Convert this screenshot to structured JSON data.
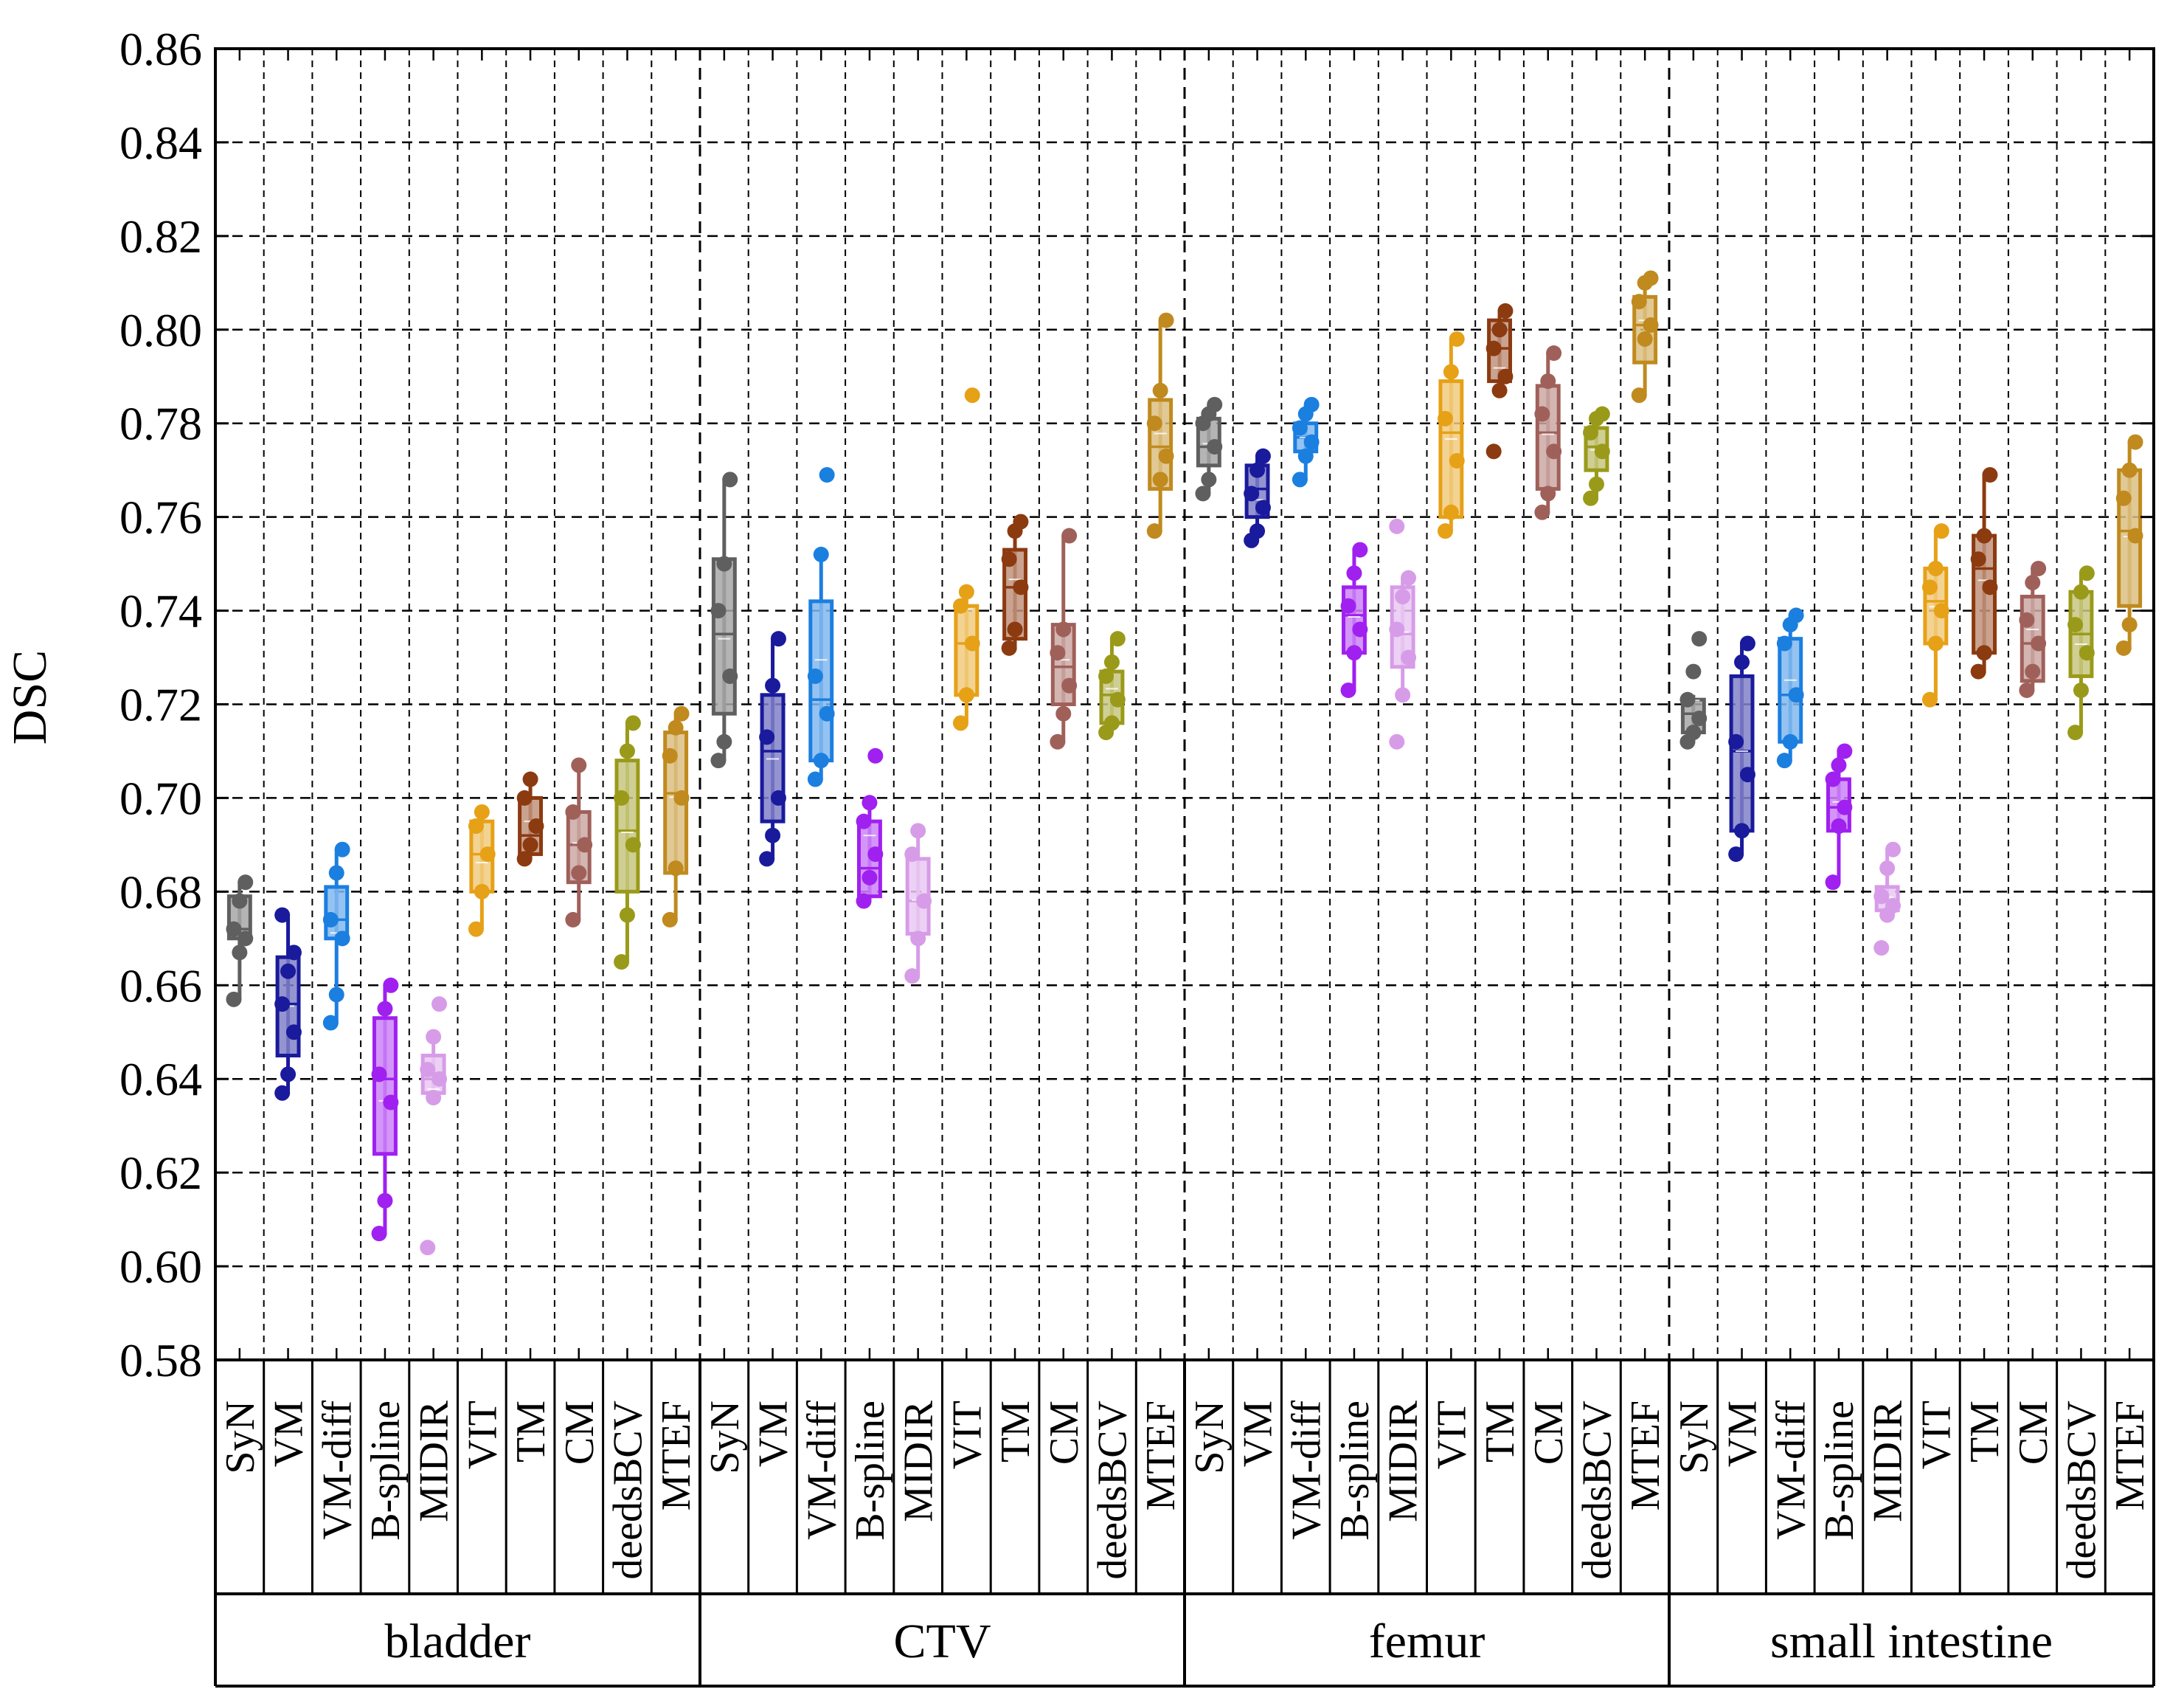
{
  "chart_data": {
    "type": "box",
    "ylabel": "DSC",
    "ylim": [
      0.58,
      0.86
    ],
    "yticks": [
      "0.58",
      "0.60",
      "0.62",
      "0.64",
      "0.66",
      "0.68",
      "0.70",
      "0.72",
      "0.74",
      "0.76",
      "0.78",
      "0.80",
      "0.82",
      "0.84",
      "0.86"
    ],
    "methods": [
      "SyN",
      "VM",
      "VM-diff",
      "B-spline",
      "MIDIR",
      "VIT",
      "TM",
      "CM",
      "deedsBCV",
      "MTEF"
    ],
    "method_colors": [
      "#5f5f5f",
      "#1a1a9c",
      "#1b7fe0",
      "#a020f0",
      "#d79ce8",
      "#e6a117",
      "#8c3a10",
      "#a0605a",
      "#9a9a1a",
      "#c08a1e"
    ],
    "groups": [
      {
        "name": "bladder",
        "boxes": [
          {
            "method": "SyN",
            "q1": 0.67,
            "median": 0.672,
            "q3": 0.679,
            "whisker_low": 0.657,
            "whisker_high": 0.682,
            "points": [
              0.657,
              0.667,
              0.67,
              0.672,
              0.678,
              0.682
            ]
          },
          {
            "method": "VM",
            "q1": 0.645,
            "median": 0.656,
            "q3": 0.666,
            "whisker_low": 0.637,
            "whisker_high": 0.675,
            "points": [
              0.637,
              0.641,
              0.65,
              0.656,
              0.663,
              0.667,
              0.675
            ]
          },
          {
            "method": "VM-diff",
            "q1": 0.67,
            "median": 0.674,
            "q3": 0.681,
            "whisker_low": 0.652,
            "whisker_high": 0.689,
            "points": [
              0.652,
              0.658,
              0.67,
              0.674,
              0.684,
              0.689
            ]
          },
          {
            "method": "B-spline",
            "q1": 0.624,
            "median": 0.64,
            "q3": 0.653,
            "whisker_low": 0.607,
            "whisker_high": 0.66,
            "points": [
              0.607,
              0.614,
              0.635,
              0.641,
              0.655,
              0.66
            ]
          },
          {
            "method": "MIDIR",
            "q1": 0.637,
            "median": 0.64,
            "q3": 0.645,
            "whisker_low": 0.636,
            "whisker_high": 0.649,
            "points": [
              0.604,
              0.636,
              0.64,
              0.642,
              0.649,
              0.656
            ]
          },
          {
            "method": "VIT",
            "q1": 0.68,
            "median": 0.688,
            "q3": 0.695,
            "whisker_low": 0.672,
            "whisker_high": 0.697,
            "points": [
              0.672,
              0.68,
              0.688,
              0.694,
              0.697
            ]
          },
          {
            "method": "TM",
            "q1": 0.688,
            "median": 0.692,
            "q3": 0.7,
            "whisker_low": 0.687,
            "whisker_high": 0.704,
            "points": [
              0.687,
              0.69,
              0.694,
              0.7,
              0.704
            ]
          },
          {
            "method": "CM",
            "q1": 0.682,
            "median": 0.69,
            "q3": 0.697,
            "whisker_low": 0.674,
            "whisker_high": 0.707,
            "points": [
              0.674,
              0.684,
              0.69,
              0.697,
              0.707
            ]
          },
          {
            "method": "deedsBCV",
            "q1": 0.68,
            "median": 0.693,
            "q3": 0.708,
            "whisker_low": 0.665,
            "whisker_high": 0.716,
            "points": [
              0.665,
              0.675,
              0.69,
              0.7,
              0.71,
              0.716
            ]
          },
          {
            "method": "MTEF",
            "q1": 0.684,
            "median": 0.701,
            "q3": 0.714,
            "whisker_low": 0.674,
            "whisker_high": 0.718,
            "points": [
              0.674,
              0.685,
              0.7,
              0.709,
              0.715,
              0.718
            ]
          }
        ]
      },
      {
        "name": "CTV",
        "boxes": [
          {
            "method": "SyN",
            "q1": 0.718,
            "median": 0.735,
            "q3": 0.751,
            "whisker_low": 0.708,
            "whisker_high": 0.768,
            "points": [
              0.708,
              0.712,
              0.726,
              0.74,
              0.75,
              0.768
            ]
          },
          {
            "method": "VM",
            "q1": 0.695,
            "median": 0.71,
            "q3": 0.722,
            "whisker_low": 0.687,
            "whisker_high": 0.734,
            "points": [
              0.687,
              0.692,
              0.7,
              0.713,
              0.724,
              0.734
            ]
          },
          {
            "method": "VM-diff",
            "q1": 0.708,
            "median": 0.721,
            "q3": 0.742,
            "whisker_low": 0.704,
            "whisker_high": 0.752,
            "points": [
              0.704,
              0.708,
              0.718,
              0.726,
              0.752,
              0.769
            ]
          },
          {
            "method": "B-spline",
            "q1": 0.679,
            "median": 0.685,
            "q3": 0.695,
            "whisker_low": 0.678,
            "whisker_high": 0.699,
            "points": [
              0.678,
              0.683,
              0.688,
              0.695,
              0.699,
              0.709
            ]
          },
          {
            "method": "MIDIR",
            "q1": 0.671,
            "median": 0.678,
            "q3": 0.687,
            "whisker_low": 0.662,
            "whisker_high": 0.693,
            "points": [
              0.662,
              0.67,
              0.678,
              0.688,
              0.693
            ]
          },
          {
            "method": "VIT",
            "q1": 0.722,
            "median": 0.733,
            "q3": 0.741,
            "whisker_low": 0.716,
            "whisker_high": 0.744,
            "points": [
              0.716,
              0.722,
              0.733,
              0.741,
              0.744,
              0.786
            ]
          },
          {
            "method": "TM",
            "q1": 0.734,
            "median": 0.745,
            "q3": 0.753,
            "whisker_low": 0.732,
            "whisker_high": 0.759,
            "points": [
              0.732,
              0.736,
              0.745,
              0.751,
              0.757,
              0.759
            ]
          },
          {
            "method": "CM",
            "q1": 0.72,
            "median": 0.728,
            "q3": 0.737,
            "whisker_low": 0.712,
            "whisker_high": 0.756,
            "points": [
              0.712,
              0.718,
              0.724,
              0.731,
              0.736,
              0.756
            ]
          },
          {
            "method": "deedsBCV",
            "q1": 0.716,
            "median": 0.722,
            "q3": 0.727,
            "whisker_low": 0.714,
            "whisker_high": 0.734,
            "points": [
              0.714,
              0.716,
              0.721,
              0.726,
              0.729,
              0.734
            ]
          },
          {
            "method": "MTEF",
            "q1": 0.766,
            "median": 0.775,
            "q3": 0.785,
            "whisker_low": 0.757,
            "whisker_high": 0.802,
            "points": [
              0.757,
              0.768,
              0.773,
              0.78,
              0.787,
              0.802
            ]
          }
        ]
      },
      {
        "name": "femur",
        "boxes": [
          {
            "method": "SyN",
            "q1": 0.771,
            "median": 0.775,
            "q3": 0.781,
            "whisker_low": 0.765,
            "whisker_high": 0.784,
            "points": [
              0.765,
              0.768,
              0.775,
              0.78,
              0.782,
              0.784
            ]
          },
          {
            "method": "VM",
            "q1": 0.76,
            "median": 0.766,
            "q3": 0.771,
            "whisker_low": 0.755,
            "whisker_high": 0.773,
            "points": [
              0.755,
              0.757,
              0.762,
              0.765,
              0.77,
              0.773
            ]
          },
          {
            "method": "VM-diff",
            "q1": 0.774,
            "median": 0.777,
            "q3": 0.78,
            "whisker_low": 0.768,
            "whisker_high": 0.784,
            "points": [
              0.768,
              0.773,
              0.776,
              0.779,
              0.782,
              0.784
            ]
          },
          {
            "method": "B-spline",
            "q1": 0.731,
            "median": 0.739,
            "q3": 0.745,
            "whisker_low": 0.723,
            "whisker_high": 0.753,
            "points": [
              0.723,
              0.731,
              0.736,
              0.741,
              0.748,
              0.753
            ]
          },
          {
            "method": "MIDIR",
            "q1": 0.728,
            "median": 0.735,
            "q3": 0.745,
            "whisker_low": 0.722,
            "whisker_high": 0.747,
            "points": [
              0.712,
              0.722,
              0.73,
              0.736,
              0.743,
              0.747,
              0.758
            ]
          },
          {
            "method": "VIT",
            "q1": 0.76,
            "median": 0.778,
            "q3": 0.789,
            "whisker_low": 0.757,
            "whisker_high": 0.798,
            "points": [
              0.757,
              0.761,
              0.772,
              0.781,
              0.791,
              0.798
            ]
          },
          {
            "method": "TM",
            "q1": 0.789,
            "median": 0.796,
            "q3": 0.802,
            "whisker_low": 0.787,
            "whisker_high": 0.804,
            "points": [
              0.774,
              0.787,
              0.79,
              0.796,
              0.8,
              0.804
            ]
          },
          {
            "method": "CM",
            "q1": 0.766,
            "median": 0.778,
            "q3": 0.788,
            "whisker_low": 0.761,
            "whisker_high": 0.795,
            "points": [
              0.761,
              0.765,
              0.774,
              0.782,
              0.789,
              0.795
            ]
          },
          {
            "method": "deedsBCV",
            "q1": 0.77,
            "median": 0.775,
            "q3": 0.779,
            "whisker_low": 0.764,
            "whisker_high": 0.782,
            "points": [
              0.764,
              0.767,
              0.774,
              0.778,
              0.781,
              0.782
            ]
          },
          {
            "method": "MTEF",
            "q1": 0.793,
            "median": 0.801,
            "q3": 0.807,
            "whisker_low": 0.786,
            "whisker_high": 0.811,
            "points": [
              0.786,
              0.798,
              0.801,
              0.806,
              0.81,
              0.811
            ]
          }
        ]
      },
      {
        "name": "small intestine",
        "boxes": [
          {
            "method": "SyN",
            "q1": 0.714,
            "median": 0.718,
            "q3": 0.721,
            "whisker_low": 0.712,
            "whisker_high": 0.722,
            "points": [
              0.712,
              0.714,
              0.717,
              0.721,
              0.727,
              0.734
            ]
          },
          {
            "method": "VM",
            "q1": 0.693,
            "median": 0.71,
            "q3": 0.726,
            "whisker_low": 0.688,
            "whisker_high": 0.733,
            "points": [
              0.688,
              0.693,
              0.705,
              0.712,
              0.729,
              0.733
            ]
          },
          {
            "method": "VM-diff",
            "q1": 0.712,
            "median": 0.722,
            "q3": 0.734,
            "whisker_low": 0.708,
            "whisker_high": 0.739,
            "points": [
              0.708,
              0.712,
              0.722,
              0.733,
              0.737,
              0.739
            ]
          },
          {
            "method": "B-spline",
            "q1": 0.693,
            "median": 0.698,
            "q3": 0.704,
            "whisker_low": 0.682,
            "whisker_high": 0.71,
            "points": [
              0.682,
              0.694,
              0.698,
              0.704,
              0.707,
              0.71
            ]
          },
          {
            "method": "MIDIR",
            "q1": 0.676,
            "median": 0.678,
            "q3": 0.681,
            "whisker_low": 0.674,
            "whisker_high": 0.689,
            "points": [
              0.668,
              0.675,
              0.677,
              0.679,
              0.685,
              0.689
            ]
          },
          {
            "method": "VIT",
            "q1": 0.733,
            "median": 0.742,
            "q3": 0.749,
            "whisker_low": 0.721,
            "whisker_high": 0.757,
            "points": [
              0.721,
              0.733,
              0.74,
              0.745,
              0.749,
              0.757
            ]
          },
          {
            "method": "TM",
            "q1": 0.731,
            "median": 0.749,
            "q3": 0.756,
            "whisker_low": 0.727,
            "whisker_high": 0.769,
            "points": [
              0.727,
              0.731,
              0.745,
              0.751,
              0.756,
              0.769
            ]
          },
          {
            "method": "CM",
            "q1": 0.725,
            "median": 0.733,
            "q3": 0.743,
            "whisker_low": 0.723,
            "whisker_high": 0.749,
            "points": [
              0.723,
              0.727,
              0.733,
              0.738,
              0.746,
              0.749
            ]
          },
          {
            "method": "deedsBCV",
            "q1": 0.726,
            "median": 0.735,
            "q3": 0.744,
            "whisker_low": 0.714,
            "whisker_high": 0.748,
            "points": [
              0.714,
              0.723,
              0.731,
              0.737,
              0.744,
              0.748
            ]
          },
          {
            "method": "MTEF",
            "q1": 0.741,
            "median": 0.757,
            "q3": 0.77,
            "whisker_low": 0.732,
            "whisker_high": 0.776,
            "points": [
              0.732,
              0.737,
              0.756,
              0.764,
              0.77,
              0.776
            ]
          }
        ]
      }
    ]
  }
}
